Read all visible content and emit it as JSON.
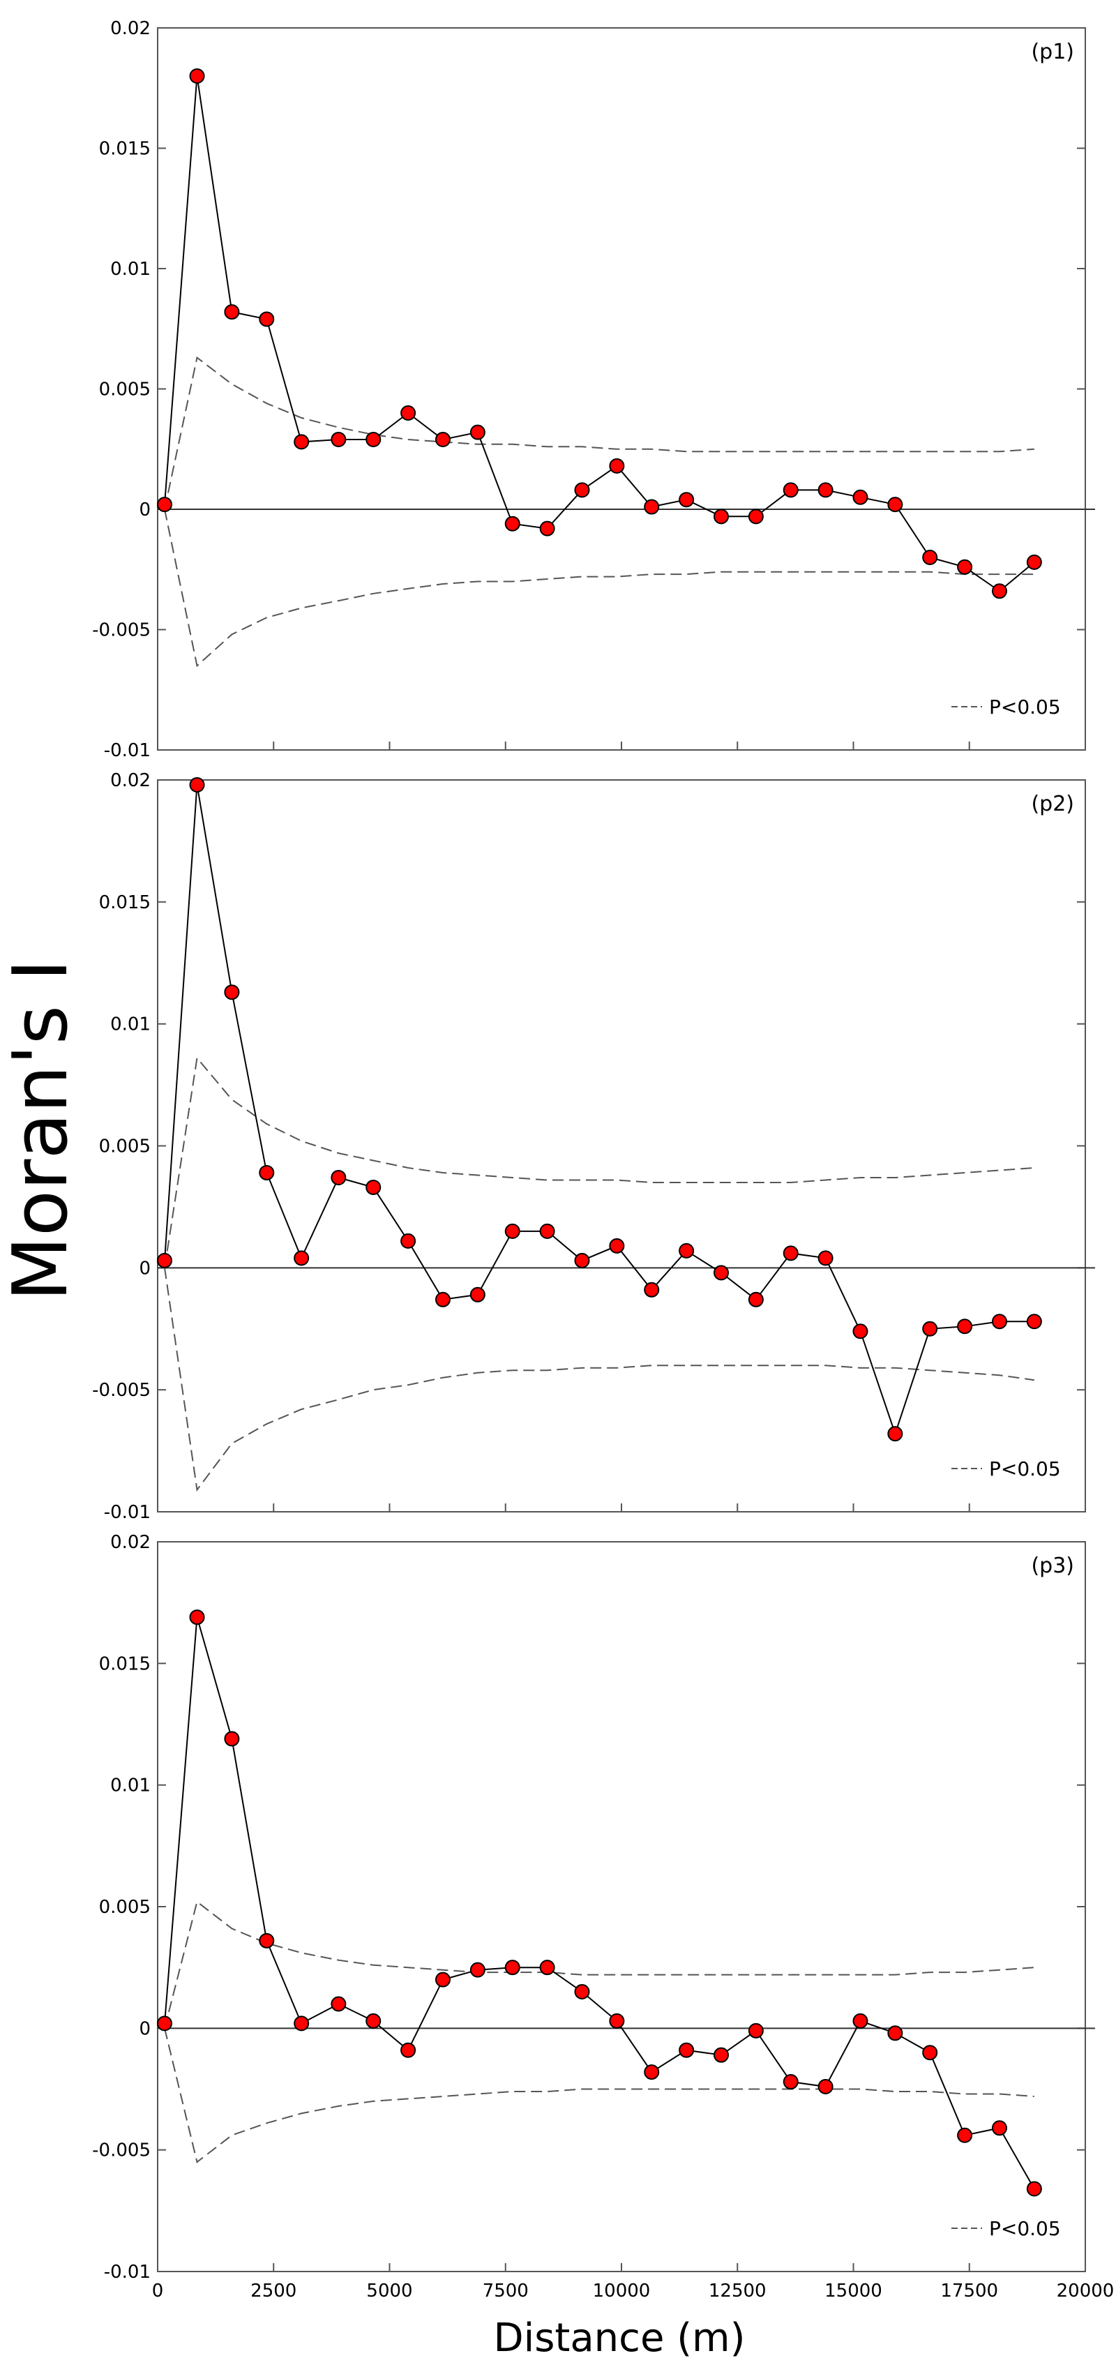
{
  "figure": {
    "ylabel": "Moran's I",
    "xlabel": "Distance (m)",
    "legend_label": "P<0.05"
  },
  "chart_data": [
    {
      "type": "line",
      "panel_label": "(p1)",
      "x": [
        150,
        850,
        1600,
        2350,
        3100,
        3900,
        4650,
        5400,
        6150,
        6900,
        7650,
        8400,
        9150,
        9900,
        10650,
        11400,
        12150,
        12900,
        13650,
        14400,
        15150,
        15900,
        16650,
        17400,
        18150,
        18900
      ],
      "series": [
        {
          "values": [
            0.0002,
            0.018,
            0.0082,
            0.0079,
            0.0028,
            0.0029,
            0.0029,
            0.004,
            0.0029,
            0.0032,
            -0.0006,
            -0.0008,
            0.0008,
            0.0018,
            0.0001,
            0.0004,
            -0.0003,
            -0.0003,
            0.0008,
            0.0008,
            0.0005,
            0.0002,
            -0.002,
            -0.0024,
            -0.0034,
            -0.0022
          ]
        }
      ],
      "upper_bound": [
        0.0,
        0.0063,
        0.0052,
        0.0044,
        0.0038,
        0.0034,
        0.0031,
        0.0029,
        0.0028,
        0.0027,
        0.0027,
        0.0026,
        0.0026,
        0.0025,
        0.0025,
        0.0024,
        0.0024,
        0.0024,
        0.0024,
        0.0024,
        0.0024,
        0.0024,
        0.0024,
        0.0024,
        0.0024,
        0.0025
      ],
      "lower_bound": [
        0.0,
        -0.0065,
        -0.0052,
        -0.0045,
        -0.0041,
        -0.0038,
        -0.0035,
        -0.0033,
        -0.0031,
        -0.003,
        -0.003,
        -0.0029,
        -0.0028,
        -0.0028,
        -0.0027,
        -0.0027,
        -0.0026,
        -0.0026,
        -0.0026,
        -0.0026,
        -0.0026,
        -0.0026,
        -0.0026,
        -0.0027,
        -0.0027,
        -0.0027
      ],
      "xlim": [
        0,
        20000
      ],
      "ylim": [
        -0.01,
        0.02
      ],
      "yticks": [
        "-0.01",
        "-0.005",
        "0",
        "0.005",
        "0.01",
        "0.015",
        "0.02"
      ],
      "legend_position": "bottom-right"
    },
    {
      "type": "line",
      "panel_label": "(p2)",
      "x": [
        150,
        850,
        1600,
        2350,
        3100,
        3900,
        4650,
        5400,
        6150,
        6900,
        7650,
        8400,
        9150,
        9900,
        10650,
        11400,
        12150,
        12900,
        13650,
        14400,
        15150,
        15900,
        16650,
        17400,
        18150,
        18900
      ],
      "series": [
        {
          "values": [
            0.0003,
            0.0198,
            0.0113,
            0.0039,
            0.0004,
            0.0037,
            0.0033,
            0.0011,
            -0.0013,
            -0.0011,
            0.0015,
            0.0015,
            0.0003,
            0.0009,
            -0.0009,
            0.0007,
            -0.0002,
            -0.0013,
            0.0006,
            0.0004,
            -0.0026,
            -0.0068,
            -0.0025,
            -0.0024,
            -0.0022,
            -0.0022
          ]
        }
      ],
      "upper_bound": [
        0.0,
        0.0086,
        0.0069,
        0.0059,
        0.0052,
        0.0047,
        0.0044,
        0.0041,
        0.0039,
        0.0038,
        0.0037,
        0.0036,
        0.0036,
        0.0036,
        0.0035,
        0.0035,
        0.0035,
        0.0035,
        0.0035,
        0.0036,
        0.0037,
        0.0037,
        0.0038,
        0.0039,
        0.004,
        0.0041
      ],
      "lower_bound": [
        0.0,
        -0.0091,
        -0.0072,
        -0.0064,
        -0.0058,
        -0.0054,
        -0.005,
        -0.0048,
        -0.0045,
        -0.0043,
        -0.0042,
        -0.0042,
        -0.0041,
        -0.0041,
        -0.004,
        -0.004,
        -0.004,
        -0.004,
        -0.004,
        -0.004,
        -0.0041,
        -0.0041,
        -0.0042,
        -0.0043,
        -0.0044,
        -0.0046
      ],
      "xlim": [
        0,
        20000
      ],
      "ylim": [
        -0.01,
        0.02
      ],
      "yticks": [
        "-0.01",
        "-0.005",
        "0",
        "0.005",
        "0.01",
        "0.015",
        "0.02"
      ],
      "legend_position": "bottom-right"
    },
    {
      "type": "line",
      "panel_label": "(p3)",
      "x": [
        150,
        850,
        1600,
        2350,
        3100,
        3900,
        4650,
        5400,
        6150,
        6900,
        7650,
        8400,
        9150,
        9900,
        10650,
        11400,
        12150,
        12900,
        13650,
        14400,
        15150,
        15900,
        16650,
        17400,
        18150,
        18900
      ],
      "series": [
        {
          "values": [
            0.0002,
            0.0169,
            0.0119,
            0.0036,
            0.0002,
            0.001,
            0.0003,
            -0.0009,
            0.002,
            0.0024,
            0.0025,
            0.0025,
            0.0015,
            0.0003,
            -0.0018,
            -0.0009,
            -0.0011,
            -0.0001,
            -0.0022,
            -0.0024,
            0.0003,
            -0.0002,
            -0.001,
            -0.0044,
            -0.0041,
            -0.0066
          ]
        }
      ],
      "upper_bound": [
        0.0,
        0.0052,
        0.0041,
        0.0035,
        0.0031,
        0.0028,
        0.0026,
        0.0025,
        0.0024,
        0.0023,
        0.0023,
        0.0023,
        0.0022,
        0.0022,
        0.0022,
        0.0022,
        0.0022,
        0.0022,
        0.0022,
        0.0022,
        0.0022,
        0.0022,
        0.0023,
        0.0023,
        0.0024,
        0.0025
      ],
      "lower_bound": [
        0.0,
        -0.0055,
        -0.0044,
        -0.0039,
        -0.0035,
        -0.0032,
        -0.003,
        -0.0029,
        -0.0028,
        -0.0027,
        -0.0026,
        -0.0026,
        -0.0025,
        -0.0025,
        -0.0025,
        -0.0025,
        -0.0025,
        -0.0025,
        -0.0025,
        -0.0025,
        -0.0025,
        -0.0026,
        -0.0026,
        -0.0027,
        -0.0027,
        -0.0028
      ],
      "xlim": [
        0,
        20000
      ],
      "ylim": [
        -0.01,
        0.02
      ],
      "xticks": [
        "0",
        "2500",
        "5000",
        "7500",
        "10000",
        "12500",
        "15000",
        "17500",
        "20000"
      ],
      "yticks": [
        "-0.01",
        "-0.005",
        "0",
        "0.005",
        "0.01",
        "0.015",
        "0.02"
      ],
      "legend_position": "bottom-right"
    }
  ],
  "colors": {
    "marker_fill": "#ff0000",
    "marker_stroke": "#000000",
    "line": "#000000",
    "envelope": "#555555",
    "axis": "#555555"
  }
}
